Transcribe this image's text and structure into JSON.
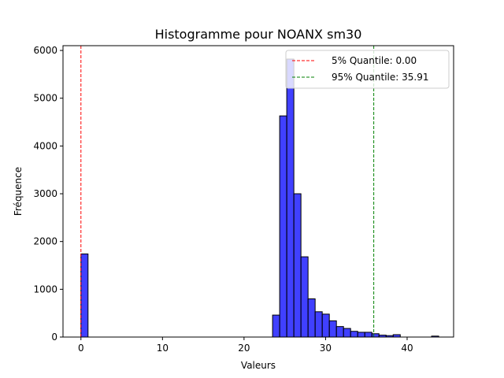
{
  "chart_data": {
    "type": "bar",
    "title": "Histogramme pour NOANX sm30",
    "xlabel": "Valeurs",
    "ylabel": "Fréquence",
    "xlim": [
      -2.2,
      45.7
    ],
    "ylim": [
      0,
      6100
    ],
    "xticks": [
      0,
      10,
      20,
      30,
      40
    ],
    "yticks": [
      0,
      1000,
      2000,
      3000,
      4000,
      5000,
      6000
    ],
    "grid": false,
    "legend_position": "top-right",
    "bar_color": "#0000ff",
    "bar_alpha": 0.75,
    "bar_edge_color": "#000000",
    "bin_width": 0.87,
    "bins": [
      {
        "x": 0.0,
        "count": 1740
      },
      {
        "x": 23.5,
        "count": 460
      },
      {
        "x": 24.37,
        "count": 4630
      },
      {
        "x": 25.24,
        "count": 5820
      },
      {
        "x": 26.11,
        "count": 3000
      },
      {
        "x": 26.98,
        "count": 1680
      },
      {
        "x": 27.85,
        "count": 800
      },
      {
        "x": 28.72,
        "count": 530
      },
      {
        "x": 29.59,
        "count": 480
      },
      {
        "x": 30.46,
        "count": 340
      },
      {
        "x": 31.33,
        "count": 220
      },
      {
        "x": 32.2,
        "count": 180
      },
      {
        "x": 33.07,
        "count": 120
      },
      {
        "x": 33.94,
        "count": 100
      },
      {
        "x": 34.81,
        "count": 100
      },
      {
        "x": 35.68,
        "count": 70
      },
      {
        "x": 36.55,
        "count": 40
      },
      {
        "x": 37.42,
        "count": 30
      },
      {
        "x": 38.29,
        "count": 50
      },
      {
        "x": 43.0,
        "count": 20
      }
    ],
    "vlines": [
      {
        "label": "5% Quantile: 0.00",
        "x": 0.0,
        "color": "#ff0000"
      },
      {
        "label": "95% Quantile: 35.91",
        "x": 35.91,
        "color": "#008000"
      }
    ]
  }
}
